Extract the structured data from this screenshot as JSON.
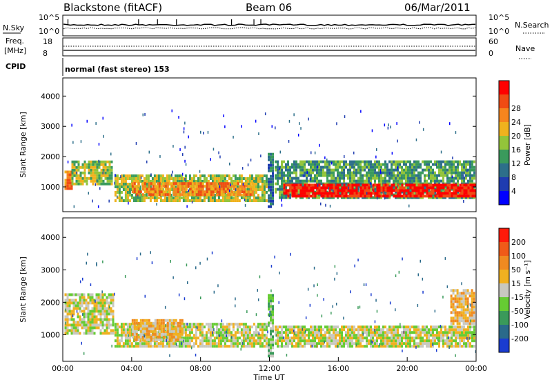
{
  "header": {
    "station": "Blackstone (fitACF)",
    "beam": "Beam 06",
    "date": "06/Mar/2011"
  },
  "status_panels": {
    "nsky_label": "N.Sky",
    "nsky_ticks": [
      "10^5",
      "10^0"
    ],
    "nsearch_label": "N.Search",
    "nsearch_ticks": [
      "10^5",
      "10^0"
    ],
    "freq_label": "Freq.",
    "freq_unit": "[MHz]",
    "freq_ticks": [
      "18",
      "8"
    ],
    "nave_label": "Nave",
    "nave_ticks": [
      "60",
      "0"
    ],
    "cpid_label": "CPID",
    "cpid_text": "normal (fast stereo) 153"
  },
  "chart_data": [
    {
      "type": "heatmap",
      "title": "",
      "xlabel": "Time UT",
      "ylabel": "Slant Range [km]",
      "x_ticks": [
        "00:00",
        "04:00",
        "08:00",
        "12:00",
        "16:00",
        "20:00",
        "00:00"
      ],
      "x_range_hours": [
        0,
        24
      ],
      "y_ticks": [
        1000,
        2000,
        3000,
        4000
      ],
      "ylim": [
        180,
        4600
      ],
      "colorbar": {
        "label": "Power [dB]",
        "ticks": [
          "4",
          "8",
          "12",
          "16",
          "20",
          "24",
          "28"
        ],
        "colors": [
          "#0000ff",
          "#1f3cb0",
          "#2d6f8a",
          "#3a9a5c",
          "#93c43a",
          "#f0b21e",
          "#f6851e",
          "#f04b14",
          "#ff0000"
        ]
      },
      "bands": [
        {
          "t_start": 0.1,
          "t_end": 0.5,
          "r_low": 900,
          "r_high": 1500,
          "level": 6
        },
        {
          "t_start": 0.5,
          "t_end": 2.9,
          "r_low": 1050,
          "r_high": 1800,
          "level": 4
        },
        {
          "t_start": 3.0,
          "t_end": 11.8,
          "r_low": 500,
          "r_high": 1350,
          "level": 4
        },
        {
          "t_start": 4.0,
          "t_end": 11.0,
          "r_low": 700,
          "r_high": 1100,
          "level": 6
        },
        {
          "t_start": 11.9,
          "t_end": 12.2,
          "r_low": 300,
          "r_high": 2100,
          "level": 2
        },
        {
          "t_start": 12.3,
          "t_end": 23.9,
          "r_low": 600,
          "r_high": 1800,
          "level": 3
        },
        {
          "t_start": 12.8,
          "t_end": 23.9,
          "r_low": 650,
          "r_high": 1050,
          "level": 8
        }
      ]
    },
    {
      "type": "heatmap",
      "title": "",
      "xlabel": "Time UT",
      "ylabel": "Slant Range [km]",
      "x_ticks": [
        "00:00",
        "04:00",
        "08:00",
        "12:00",
        "16:00",
        "20:00",
        "00:00"
      ],
      "x_range_hours": [
        0,
        24
      ],
      "y_ticks": [
        1000,
        2000,
        3000,
        4000
      ],
      "ylim": [
        180,
        4600
      ],
      "colorbar": {
        "label": "Velocity [m s⁻¹]",
        "ticks": [
          "200",
          "100",
          "50",
          "15",
          "-15",
          "-50",
          "-100",
          "-200"
        ],
        "colors": [
          "#1a3cd0",
          "#2a6a8a",
          "#3a9a5a",
          "#66cc33",
          "#c8c8c0",
          "#f0b020",
          "#f08a20",
          "#f05a18",
          "#ff1a0a"
        ]
      },
      "bands": [
        {
          "t_start": 0.1,
          "t_end": 2.9,
          "r_low": 1000,
          "r_high": 2200,
          "level": 4
        },
        {
          "t_start": 3.0,
          "t_end": 11.8,
          "r_low": 600,
          "r_high": 1350,
          "level": 4
        },
        {
          "t_start": 4.0,
          "t_end": 7.0,
          "r_low": 800,
          "r_high": 1400,
          "level": 5
        },
        {
          "t_start": 11.9,
          "t_end": 12.2,
          "r_low": 300,
          "r_high": 2200,
          "level": 3
        },
        {
          "t_start": 12.3,
          "t_end": 23.9,
          "r_low": 600,
          "r_high": 1200,
          "level": 4
        },
        {
          "t_start": 22.5,
          "t_end": 23.9,
          "r_low": 1300,
          "r_high": 2400,
          "level": 5
        }
      ]
    }
  ]
}
